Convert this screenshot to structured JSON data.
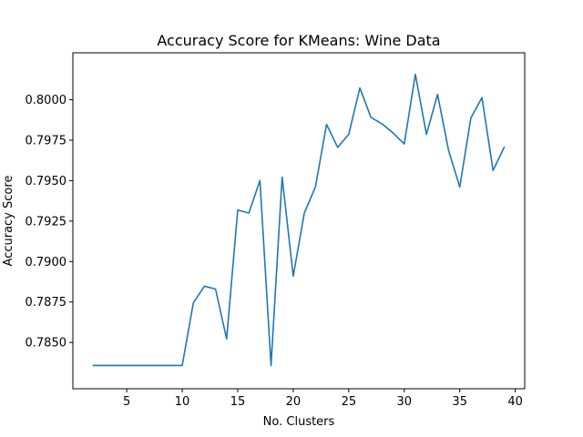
{
  "chart_data": {
    "type": "line",
    "title": "Accuracy Score for KMeans: Wine Data",
    "xlabel": "No. Clusters",
    "ylabel": "Accuracy Score",
    "xlim": [
      0.15,
      40.85
    ],
    "ylim": [
      0.78214,
      0.8029
    ],
    "xticks": [
      5,
      10,
      15,
      20,
      25,
      30,
      35,
      40
    ],
    "xtick_labels": [
      "5",
      "10",
      "15",
      "20",
      "25",
      "30",
      "35",
      "40"
    ],
    "yticks": [
      0.785,
      0.7875,
      0.79,
      0.7925,
      0.795,
      0.7975,
      0.8
    ],
    "ytick_labels": [
      "0.7850",
      "0.7875",
      "0.7900",
      "0.7925",
      "0.7950",
      "0.7975",
      "0.8000"
    ],
    "grid": false,
    "color": "#1f77b4",
    "series": [
      {
        "x": [
          2,
          3,
          4,
          5,
          6,
          7,
          8,
          9,
          10,
          11,
          12,
          13,
          14,
          15,
          16,
          17,
          18,
          19,
          20,
          21,
          22,
          23,
          24,
          25,
          26,
          27,
          28,
          29,
          30,
          31,
          32,
          33,
          34,
          35,
          36,
          37,
          38,
          39
        ],
        "y": [
          0.78358,
          0.78358,
          0.78358,
          0.78358,
          0.78358,
          0.78358,
          0.78358,
          0.78358,
          0.78358,
          0.78744,
          0.78848,
          0.7883,
          0.78522,
          0.79318,
          0.793,
          0.79501,
          0.78358,
          0.79522,
          0.7891,
          0.793,
          0.79461,
          0.79848,
          0.79706,
          0.79786,
          0.80073,
          0.79891,
          0.79851,
          0.79794,
          0.79727,
          0.80157,
          0.79786,
          0.80033,
          0.79685,
          0.79461,
          0.79887,
          0.80013,
          0.79563,
          0.79706
        ]
      }
    ]
  }
}
